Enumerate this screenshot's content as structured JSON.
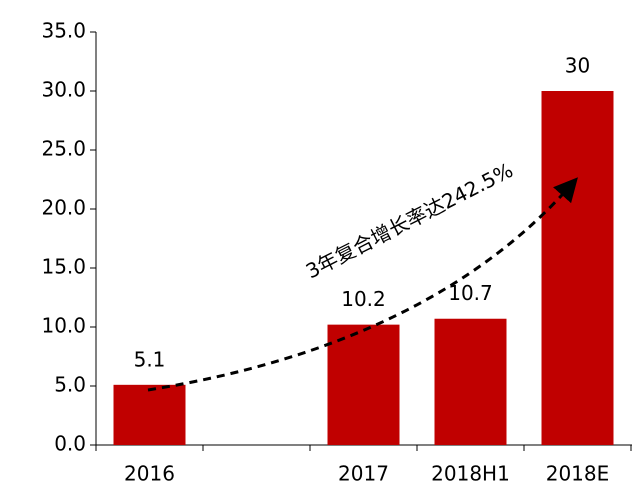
{
  "chart_data": {
    "type": "bar",
    "categories": [
      "2016",
      null,
      "2017",
      "2018H1",
      "2018E"
    ],
    "values": [
      5.1,
      null,
      10.2,
      10.7,
      30
    ],
    "color": "#c00000",
    "ylim": [
      0,
      35
    ],
    "yticks": [
      {
        "value": 0,
        "label": "0.0"
      },
      {
        "value": 5,
        "label": "5.0"
      },
      {
        "value": 10,
        "label": "10.0"
      },
      {
        "value": 15,
        "label": "15.0"
      },
      {
        "value": 20,
        "label": "20.0"
      },
      {
        "value": 25,
        "label": "25.0"
      },
      {
        "value": 30,
        "label": "30.0"
      },
      {
        "value": 35,
        "label": "35.0"
      }
    ],
    "annotation": "3年复合增长率达242.5%"
  }
}
